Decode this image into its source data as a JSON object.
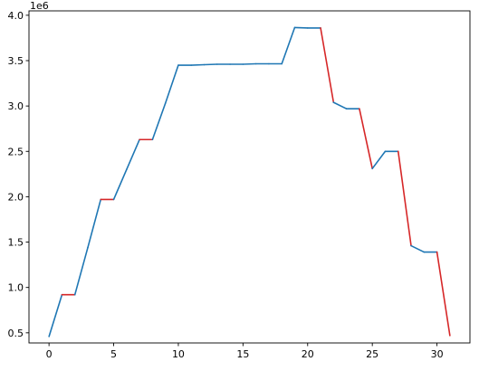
{
  "chart_data": {
    "type": "line",
    "title": "",
    "xlabel": "",
    "ylabel": "",
    "y_offset_label": "1e6",
    "xlim": [
      -1.55,
      32.55
    ],
    "ylim": [
      0.3885,
      4.0485
    ],
    "x_ticks": [
      0,
      5,
      10,
      15,
      20,
      25,
      30
    ],
    "x_tick_labels": [
      "0",
      "5",
      "10",
      "15",
      "20",
      "25",
      "30"
    ],
    "y_ticks": [
      0.5,
      1.0,
      1.5,
      2.0,
      2.5,
      3.0,
      3.5,
      4.0
    ],
    "y_tick_labels": [
      "0.5",
      "1.0",
      "1.5",
      "2.0",
      "2.5",
      "3.0",
      "3.5",
      "4.0"
    ],
    "grid": false,
    "legend": "none",
    "colors": {
      "up": "#1f77b4",
      "down": "#d62728"
    },
    "x": [
      0,
      1,
      2,
      3,
      4,
      5,
      6,
      7,
      8,
      9,
      10,
      11,
      12,
      13,
      14,
      15,
      16,
      17,
      18,
      19,
      20,
      21,
      22,
      23,
      24,
      25,
      26,
      27,
      28,
      29,
      30,
      31
    ],
    "y": [
      0.46,
      0.92,
      0.92,
      1.44,
      1.97,
      1.97,
      2.3,
      2.63,
      2.63,
      3.03,
      3.45,
      3.45,
      3.455,
      3.46,
      3.46,
      3.46,
      3.465,
      3.465,
      3.465,
      3.865,
      3.86,
      3.86,
      3.04,
      2.97,
      2.97,
      2.31,
      2.5,
      2.5,
      1.46,
      1.39,
      1.39,
      0.47
    ],
    "segment_colors": [
      "up",
      "down",
      "up",
      "up",
      "down",
      "up",
      "up",
      "down",
      "up",
      "up",
      "up",
      "up",
      "up",
      "up",
      "up",
      "up",
      "up",
      "up",
      "up",
      "up",
      "up",
      "down",
      "up",
      "up",
      "down",
      "up",
      "up",
      "down",
      "up",
      "up",
      "down"
    ]
  }
}
